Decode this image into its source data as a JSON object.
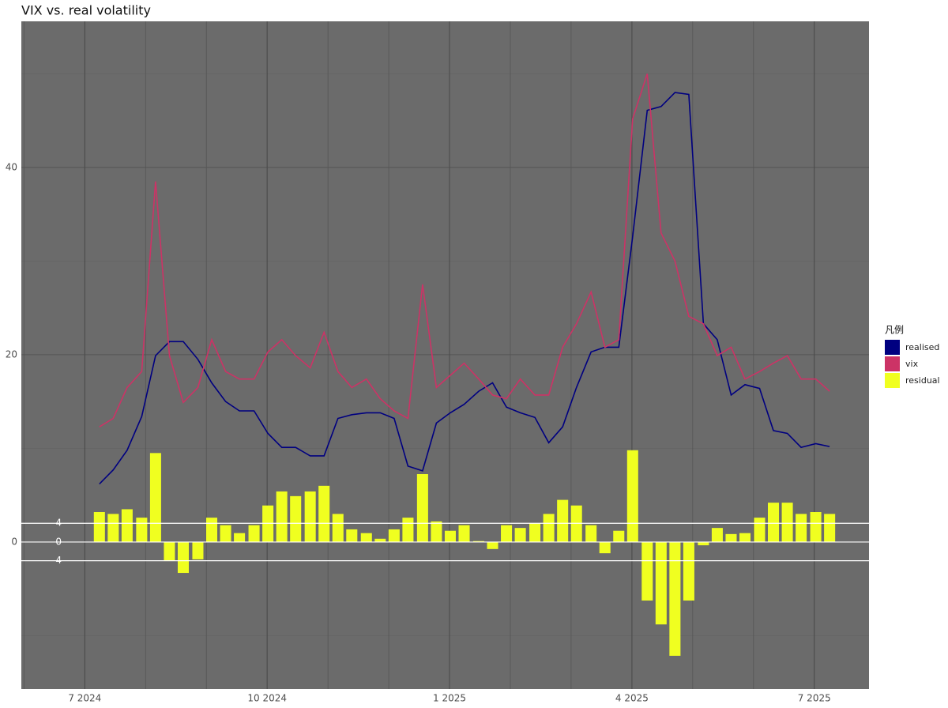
{
  "chart_data": {
    "type": "line",
    "title": "VIX vs. real volatility",
    "legend_title": "凡例",
    "legend": "right",
    "grid": true,
    "x": [
      2024.52,
      2024.539,
      2024.558,
      2024.578,
      2024.597,
      2024.616,
      2024.635,
      2024.655,
      2024.674,
      2024.693,
      2024.712,
      2024.732,
      2024.751,
      2024.77,
      2024.789,
      2024.809,
      2024.828,
      2024.847,
      2024.866,
      2024.886,
      2024.905,
      2024.924,
      2024.943,
      2024.963,
      2024.982,
      2025.001,
      2025.02,
      2025.04,
      2025.059,
      2025.078,
      2025.097,
      2025.117,
      2025.136,
      2025.155,
      2025.174,
      2025.194,
      2025.213,
      2025.232,
      2025.251,
      2025.271,
      2025.29,
      2025.309,
      2025.328,
      2025.348,
      2025.367,
      2025.386,
      2025.405,
      2025.425,
      2025.444,
      2025.463,
      2025.482,
      2025.502,
      2025.521
    ],
    "xlim": [
      2024.413,
      2025.575
    ],
    "xticks": [
      {
        "value": 2024.5,
        "label": "7 2024"
      },
      {
        "value": 2024.75,
        "label": "10 2024"
      },
      {
        "value": 2025.0,
        "label": "1 2025"
      },
      {
        "value": 2025.25,
        "label": "4 2025"
      },
      {
        "value": 2025.5,
        "label": "7 2025"
      }
    ],
    "ylim": [
      -15.7,
      55.6
    ],
    "yticks": [
      0,
      20,
      40
    ],
    "y2lim": [
      -31.4,
      111.2
    ],
    "y2ticks": [
      -4,
      0,
      4
    ],
    "series": [
      {
        "name": "realised",
        "color": "#000080",
        "kind": "line",
        "values": [
          6.2,
          7.7,
          9.8,
          13.4,
          19.9,
          21.4,
          21.4,
          19.5,
          17.0,
          15.0,
          14.0,
          14.0,
          11.6,
          10.1,
          10.1,
          9.2,
          9.2,
          13.2,
          13.6,
          13.8,
          13.8,
          13.2,
          8.1,
          7.6,
          12.7,
          13.8,
          14.7,
          16.1,
          17.0,
          14.4,
          13.8,
          13.3,
          10.6,
          12.3,
          16.5,
          20.3,
          20.8,
          20.8,
          32.6,
          46.1,
          46.5,
          48.0,
          47.8,
          23.3,
          21.6,
          15.7,
          16.8,
          16.4,
          11.9,
          11.6,
          10.1,
          10.5,
          10.2
        ]
      },
      {
        "name": "vix",
        "color": "#cc3366",
        "kind": "line",
        "values": [
          12.3,
          13.2,
          16.5,
          18.2,
          38.5,
          19.9,
          14.9,
          16.5,
          21.6,
          18.2,
          17.4,
          17.4,
          20.3,
          21.6,
          19.9,
          18.6,
          22.4,
          18.2,
          16.5,
          17.4,
          15.3,
          14.0,
          13.2,
          27.5,
          16.5,
          17.8,
          19.1,
          17.4,
          15.7,
          15.3,
          17.4,
          15.7,
          15.7,
          20.8,
          23.3,
          26.7,
          20.8,
          21.6,
          45.2,
          50.0,
          33.0,
          30.0,
          24.1,
          23.3,
          19.9,
          20.8,
          17.4,
          18.2,
          19.1,
          19.9,
          17.4,
          17.4,
          16.1
        ]
      },
      {
        "name": "residual",
        "color": "#f0ff20",
        "kind": "bar",
        "axis": "y2",
        "values": [
          6.4,
          6.0,
          7.0,
          5.2,
          19.0,
          -4.0,
          -6.6,
          -3.7,
          5.2,
          3.6,
          1.9,
          3.6,
          7.8,
          10.8,
          9.8,
          10.8,
          12.0,
          6.0,
          2.7,
          1.9,
          0.7,
          2.7,
          5.2,
          14.5,
          4.4,
          2.4,
          3.6,
          0.2,
          -1.5,
          3.6,
          3.0,
          4.0,
          6.0,
          9.0,
          7.8,
          3.6,
          -2.4,
          2.4,
          19.6,
          -12.5,
          -17.6,
          -24.3,
          -12.5,
          -0.7,
          3.0,
          1.7,
          1.9,
          5.2,
          8.4,
          8.4,
          6.0,
          6.4,
          6.0
        ]
      }
    ]
  }
}
